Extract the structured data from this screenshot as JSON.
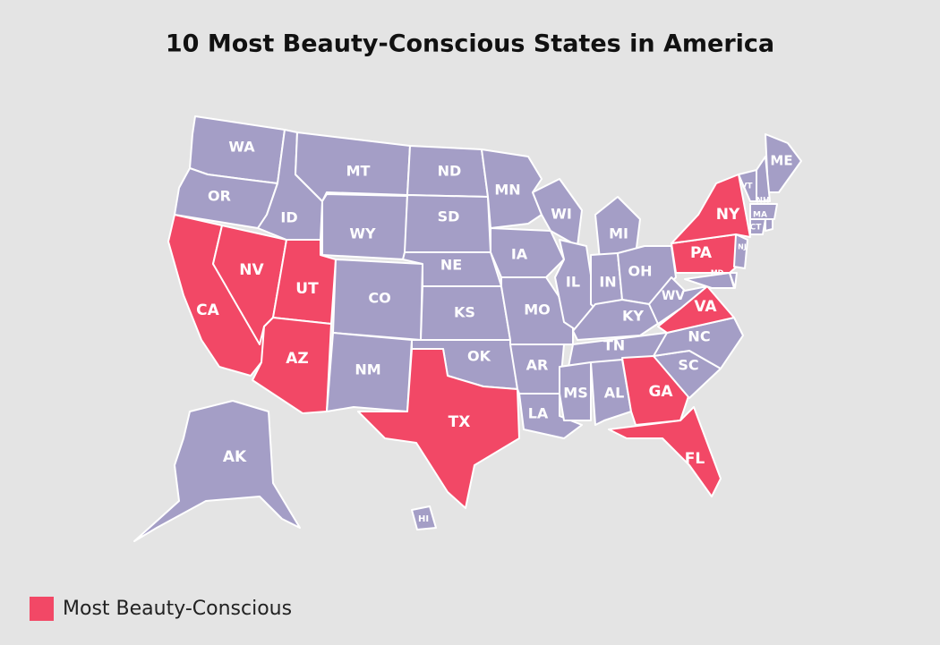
{
  "title": "10 Most Beauty-Conscious States in America",
  "legend": {
    "label": "Most Beauty-Conscious"
  },
  "colors": {
    "default": "#a49ec6",
    "highlighted": "#f24866"
  },
  "states": [
    {
      "label": "WA",
      "highlighted": false
    },
    {
      "label": "OR",
      "highlighted": false
    },
    {
      "label": "CA",
      "highlighted": true
    },
    {
      "label": "NV",
      "highlighted": true
    },
    {
      "label": "ID",
      "highlighted": false
    },
    {
      "label": "MT",
      "highlighted": false
    },
    {
      "label": "WY",
      "highlighted": false
    },
    {
      "label": "UT",
      "highlighted": true
    },
    {
      "label": "AZ",
      "highlighted": true
    },
    {
      "label": "CO",
      "highlighted": false
    },
    {
      "label": "NM",
      "highlighted": false
    },
    {
      "label": "ND",
      "highlighted": false
    },
    {
      "label": "SD",
      "highlighted": false
    },
    {
      "label": "NE",
      "highlighted": false
    },
    {
      "label": "KS",
      "highlighted": false
    },
    {
      "label": "OK",
      "highlighted": false
    },
    {
      "label": "TX",
      "highlighted": true
    },
    {
      "label": "MN",
      "highlighted": false
    },
    {
      "label": "IA",
      "highlighted": false
    },
    {
      "label": "MO",
      "highlighted": false
    },
    {
      "label": "AR",
      "highlighted": false
    },
    {
      "label": "LA",
      "highlighted": false
    },
    {
      "label": "WI",
      "highlighted": false
    },
    {
      "label": "IL",
      "highlighted": false
    },
    {
      "label": "MI",
      "highlighted": false
    },
    {
      "label": "IN",
      "highlighted": false
    },
    {
      "label": "OH",
      "highlighted": false
    },
    {
      "label": "KY",
      "highlighted": false
    },
    {
      "label": "TN",
      "highlighted": false
    },
    {
      "label": "MS",
      "highlighted": false
    },
    {
      "label": "AL",
      "highlighted": false
    },
    {
      "label": "GA",
      "highlighted": true
    },
    {
      "label": "FL",
      "highlighted": true
    },
    {
      "label": "SC",
      "highlighted": false
    },
    {
      "label": "NC",
      "highlighted": false
    },
    {
      "label": "VA",
      "highlighted": true
    },
    {
      "label": "WV",
      "highlighted": false
    },
    {
      "label": "PA",
      "highlighted": true
    },
    {
      "label": "NY",
      "highlighted": true
    },
    {
      "label": "ME",
      "highlighted": false
    },
    {
      "label": "VT",
      "highlighted": false
    },
    {
      "label": "NH",
      "highlighted": false
    },
    {
      "label": "MA",
      "highlighted": false
    },
    {
      "label": "CT",
      "highlighted": false
    },
    {
      "label": "NJ",
      "highlighted": false
    },
    {
      "label": "MD",
      "highlighted": false
    },
    {
      "label": "AK",
      "highlighted": false
    },
    {
      "label": "HI",
      "highlighted": false
    }
  ]
}
